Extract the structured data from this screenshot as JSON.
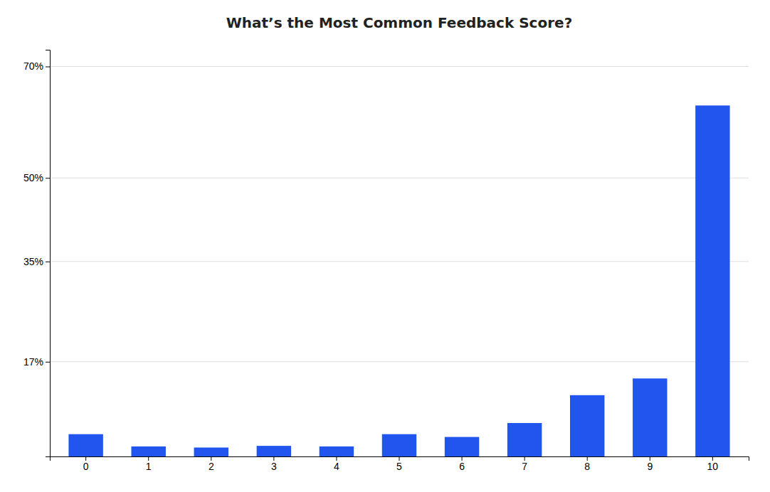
{
  "chart_data": {
    "type": "bar",
    "title": "What’s the Most Common Feedback Score?",
    "categories": [
      "0",
      "1",
      "2",
      "3",
      "4",
      "5",
      "6",
      "7",
      "8",
      "9",
      "10"
    ],
    "values": [
      4.0,
      1.8,
      1.6,
      1.9,
      1.8,
      4.0,
      3.5,
      6.0,
      11.0,
      14.0,
      63.0
    ],
    "color": "#2255ee",
    "ylim": [
      0,
      73
    ],
    "yticks": [
      {
        "value": 17,
        "label": "17%"
      },
      {
        "value": 35,
        "label": "35%"
      },
      {
        "value": 50,
        "label": "50%"
      },
      {
        "value": 70,
        "label": "70%"
      }
    ],
    "grid": true
  }
}
